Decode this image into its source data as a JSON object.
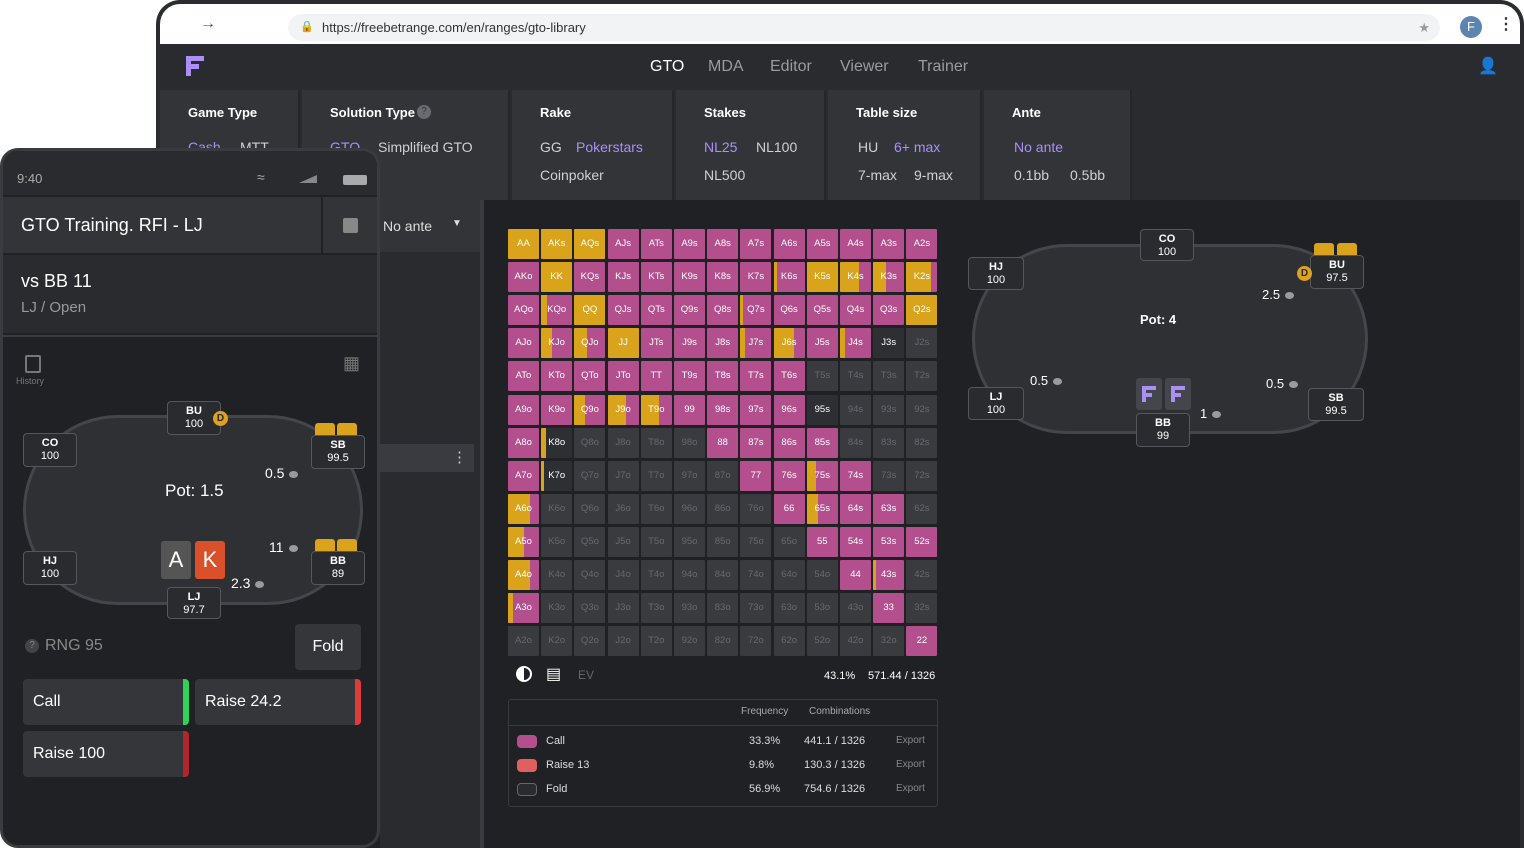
{
  "browser": {
    "url": "https://freebetrange.com/en/ranges/gto-library",
    "profile_initial": "F"
  },
  "nav": {
    "tabs": [
      "GTO",
      "MDA",
      "Editor",
      "Viewer",
      "Trainer"
    ],
    "active": "GTO"
  },
  "filters": {
    "game_type": {
      "title": "Game Type",
      "options": [
        "Cash",
        "MTT"
      ],
      "selected": "Cash"
    },
    "solution_type": {
      "title": "Solution Type",
      "options": [
        "GTO",
        "Simplified GTO"
      ],
      "selected": "GTO"
    },
    "rake": {
      "title": "Rake",
      "options": [
        "GG",
        "Pokerstars",
        "Coinpoker"
      ],
      "selected": "Pokerstars"
    },
    "stakes": {
      "title": "Stakes",
      "options": [
        "NL25",
        "NL100",
        "NL500"
      ],
      "selected": "NL25"
    },
    "table_size": {
      "title": "Table size",
      "options": [
        "HU",
        "6+ max",
        "7-max",
        "9-max"
      ],
      "selected": "6+ max"
    },
    "ante": {
      "title": "Ante",
      "options": [
        "No ante",
        "0.1bb",
        "0.5bb"
      ],
      "selected": "No ante"
    }
  },
  "side": {
    "ante_dropdown": "No ante"
  },
  "colors": {
    "call": "#b24f8c",
    "raise": "#e06060",
    "fold": "#3a3b3f",
    "yellow": "#d9a41c",
    "accent": "#a98ff6"
  },
  "grid": {
    "rows": [
      [
        "AA",
        "AKs",
        "AQs",
        "AJs",
        "ATs",
        "A9s",
        "A8s",
        "A7s",
        "A6s",
        "A5s",
        "A4s",
        "A3s",
        "A2s"
      ],
      [
        "AKo",
        "KK",
        "KQs",
        "KJs",
        "KTs",
        "K9s",
        "K8s",
        "K7s",
        "K6s",
        "K5s",
        "K4s",
        "K3s",
        "K2s"
      ],
      [
        "AQo",
        "KQo",
        "QQ",
        "QJs",
        "QTs",
        "Q9s",
        "Q8s",
        "Q7s",
        "Q6s",
        "Q5s",
        "Q4s",
        "Q3s",
        "Q2s"
      ],
      [
        "AJo",
        "KJo",
        "QJo",
        "JJ",
        "JTs",
        "J9s",
        "J8s",
        "J7s",
        "J6s",
        "J5s",
        "J4s",
        "J3s",
        "J2s"
      ],
      [
        "ATo",
        "KTo",
        "QTo",
        "JTo",
        "TT",
        "T9s",
        "T8s",
        "T7s",
        "T6s",
        "T5s",
        "T4s",
        "T3s",
        "T2s"
      ],
      [
        "A9o",
        "K9o",
        "Q9o",
        "J9o",
        "T9o",
        "99",
        "98s",
        "97s",
        "96s",
        "95s",
        "94s",
        "93s",
        "92s"
      ],
      [
        "A8o",
        "K8o",
        "Q8o",
        "J8o",
        "T8o",
        "98o",
        "88",
        "87s",
        "86s",
        "85s",
        "84s",
        "83s",
        "82s"
      ],
      [
        "A7o",
        "K7o",
        "Q7o",
        "J7o",
        "T7o",
        "97o",
        "87o",
        "77",
        "76s",
        "75s",
        "74s",
        "73s",
        "72s"
      ],
      [
        "A6o",
        "K6o",
        "Q6o",
        "J6o",
        "T6o",
        "96o",
        "86o",
        "76o",
        "66",
        "65s",
        "64s",
        "63s",
        "62s"
      ],
      [
        "A5o",
        "K5o",
        "Q5o",
        "J5o",
        "T5o",
        "95o",
        "85o",
        "75o",
        "65o",
        "55",
        "54s",
        "53s",
        "52s"
      ],
      [
        "A4o",
        "K4o",
        "Q4o",
        "J4o",
        "T4o",
        "94o",
        "84o",
        "74o",
        "64o",
        "54o",
        "44",
        "43s",
        "42s"
      ],
      [
        "A3o",
        "K3o",
        "Q3o",
        "J3o",
        "T3o",
        "93o",
        "83o",
        "73o",
        "63o",
        "53o",
        "43o",
        "33",
        "32s"
      ],
      [
        "A2o",
        "K2o",
        "Q2o",
        "J2o",
        "T2o",
        "92o",
        "82o",
        "72o",
        "62o",
        "52o",
        "42o",
        "32o",
        "22"
      ]
    ],
    "fills": [
      [
        "Y",
        "Y",
        "Y",
        "P",
        "P",
        "P",
        "P",
        "P",
        "P",
        "P",
        "P",
        "P",
        "P"
      ],
      [
        "P",
        "Y",
        "P",
        "P",
        "P",
        "P",
        "P",
        "P",
        "P",
        "Y",
        "Y",
        "Y",
        "Y"
      ],
      [
        "P",
        "Y",
        "Y",
        "P",
        "P",
        "P",
        "P",
        "Y",
        "P",
        "P",
        "P",
        "P",
        "Y"
      ],
      [
        "P",
        "P",
        "P",
        "Y",
        "P",
        "P",
        "P",
        "P",
        "P",
        "P",
        "P",
        "D",
        "G"
      ],
      [
        "P",
        "P",
        "P",
        "P",
        "P",
        "P",
        "P",
        "P",
        "P",
        "G",
        "G",
        "G",
        "G"
      ],
      [
        "P",
        "P",
        "P",
        "P",
        "P",
        "P",
        "P",
        "P",
        "P",
        "D",
        "G",
        "G",
        "G"
      ],
      [
        "P",
        "D",
        "G",
        "G",
        "G",
        "G",
        "P",
        "P",
        "P",
        "P",
        "G",
        "G",
        "G"
      ],
      [
        "P",
        "D",
        "G",
        "G",
        "G",
        "G",
        "G",
        "P",
        "P",
        "P",
        "P",
        "G",
        "G"
      ],
      [
        "P",
        "G",
        "G",
        "G",
        "G",
        "G",
        "G",
        "G",
        "P",
        "P",
        "P",
        "P",
        "G"
      ],
      [
        "P",
        "G",
        "G",
        "G",
        "G",
        "G",
        "G",
        "G",
        "G",
        "P",
        "P",
        "P",
        "P"
      ],
      [
        "P",
        "G",
        "G",
        "G",
        "G",
        "G",
        "G",
        "G",
        "G",
        "G",
        "P",
        "P",
        "G"
      ],
      [
        "P",
        "G",
        "G",
        "G",
        "G",
        "G",
        "G",
        "G",
        "G",
        "G",
        "G",
        "P",
        "G"
      ],
      [
        "G",
        "G",
        "G",
        "G",
        "G",
        "G",
        "G",
        "G",
        "G",
        "G",
        "G",
        "G",
        "P"
      ]
    ],
    "yellow_share": [
      [
        1,
        1,
        1,
        0,
        0,
        0,
        0,
        0,
        0,
        0,
        0,
        0,
        0
      ],
      [
        0,
        1,
        0,
        0,
        0,
        0,
        0,
        0,
        0.1,
        1,
        0.6,
        0.4,
        0.8
      ],
      [
        0,
        0.2,
        1,
        0,
        0,
        0,
        0,
        0.1,
        0,
        0,
        0,
        0,
        1
      ],
      [
        0,
        0.35,
        0.4,
        1,
        0,
        0,
        0,
        0.15,
        0.65,
        0,
        0.15,
        0,
        0
      ],
      [
        0,
        0,
        0,
        0,
        0,
        0,
        0,
        0,
        0,
        0,
        0,
        0,
        0
      ],
      [
        0,
        0,
        0.35,
        0.6,
        0.6,
        0,
        0,
        0,
        0,
        0,
        0,
        0,
        0
      ],
      [
        0,
        0.15,
        0,
        0,
        0,
        0,
        0,
        0,
        0,
        0,
        0,
        0,
        0
      ],
      [
        0,
        0.1,
        0,
        0,
        0,
        0,
        0,
        0,
        0,
        0.3,
        0,
        0,
        0
      ],
      [
        0.7,
        0,
        0,
        0,
        0,
        0,
        0,
        0,
        0,
        0.35,
        0,
        0,
        0
      ],
      [
        0.5,
        0,
        0,
        0,
        0,
        0,
        0,
        0,
        0,
        0,
        0,
        0,
        0
      ],
      [
        0.7,
        0,
        0,
        0,
        0,
        0,
        0,
        0,
        0,
        0,
        0,
        0.1,
        0
      ],
      [
        0.15,
        0,
        0,
        0,
        0,
        0,
        0,
        0,
        0,
        0,
        0,
        0,
        0
      ],
      [
        0,
        0,
        0,
        0,
        0,
        0,
        0,
        0,
        0,
        0,
        0,
        0,
        0
      ]
    ]
  },
  "grid_footer": {
    "ev_label": "EV",
    "pct": "43.1%",
    "combos": "571.44 / 1326"
  },
  "legend": {
    "headers": {
      "frequency": "Frequency",
      "combinations": "Combinations"
    },
    "rows": [
      {
        "label": "Call",
        "freq": "33.3%",
        "combos": "441.1 / 1326",
        "export": "Export",
        "color": "#b24f8c"
      },
      {
        "label": "Raise 13",
        "freq": "9.8%",
        "combos": "130.3 / 1326",
        "export": "Export",
        "color": "#e06060"
      },
      {
        "label": "Fold",
        "freq": "56.9%",
        "combos": "754.6 / 1326",
        "export": "Export",
        "color": "#2a2b2f"
      }
    ]
  },
  "desk_table": {
    "pot": "Pot: 4",
    "seats": {
      "co": [
        "CO",
        "100"
      ],
      "hj": [
        "HJ",
        "100"
      ],
      "bu": [
        "BU",
        "97.5"
      ],
      "lj": [
        "LJ",
        "100"
      ],
      "sb": [
        "SB",
        "99.5"
      ],
      "bb": [
        "BB",
        "99"
      ]
    },
    "bets": {
      "bu": "2.5",
      "lj": "0.5",
      "sb": "0.5",
      "bb": "1"
    },
    "dealer": "D"
  },
  "phone": {
    "time": "9:40",
    "title": "GTO Training. RFI - LJ",
    "vs": "vs BB 11",
    "sub": "LJ / Open",
    "history_label": "History",
    "pot": "Pot: 1.5",
    "seats": {
      "bu": [
        "BU",
        "100"
      ],
      "co": [
        "CO",
        "100"
      ],
      "sb": [
        "SB",
        "99.5"
      ],
      "hj": [
        "HJ",
        "100"
      ],
      "bb": [
        "BB",
        "89"
      ],
      "lj": [
        "LJ",
        "97.7"
      ]
    },
    "bets": {
      "sb": "0.5",
      "bb": "11",
      "lj": "2.3"
    },
    "dealer": "D",
    "cards": [
      "A",
      "K"
    ],
    "rng": "RNG 95",
    "buttons": {
      "fold": "Fold",
      "call": "Call",
      "raise1": "Raise 24.2",
      "raise2": "Raise 100"
    }
  }
}
